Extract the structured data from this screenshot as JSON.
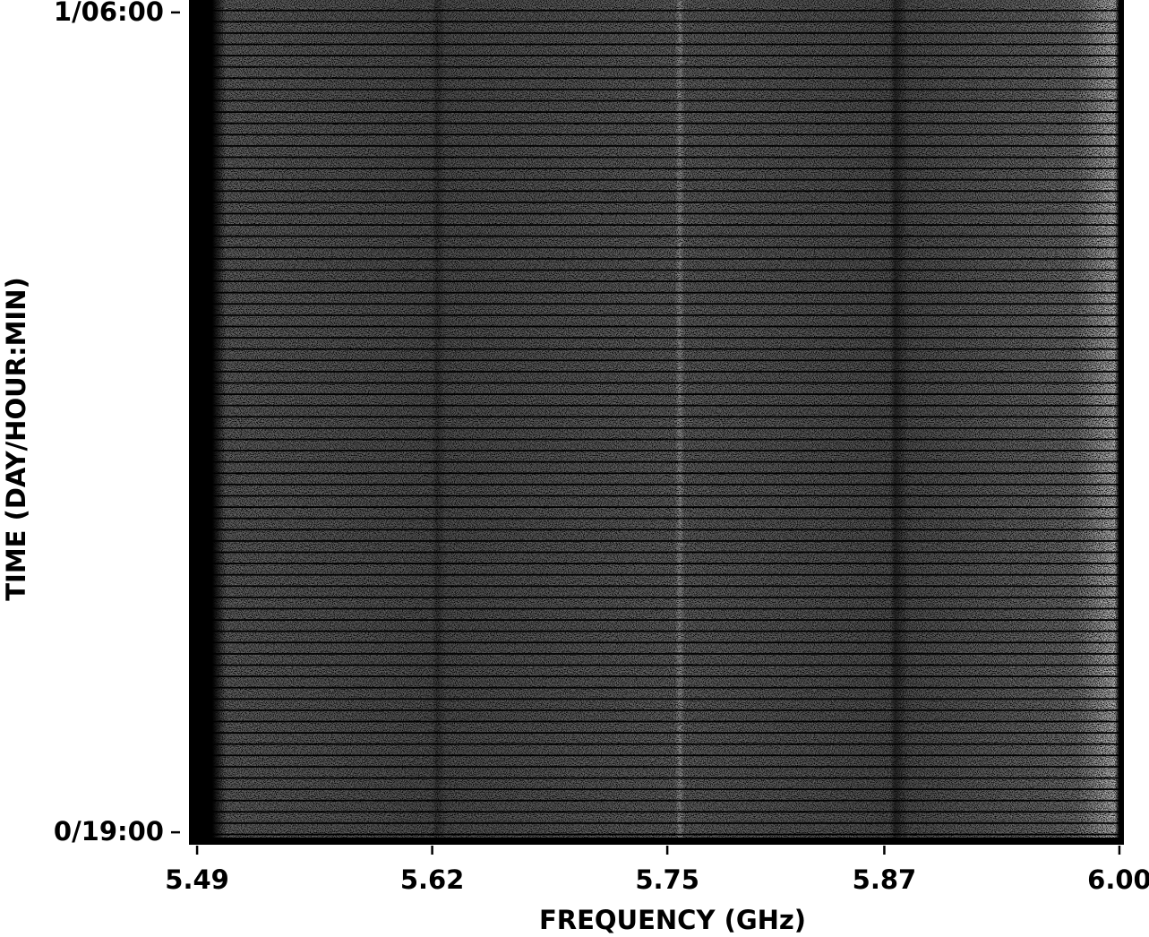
{
  "chart_data": {
    "type": "heatmap",
    "x_label": "FREQUENCY (GHz)",
    "y_label": "TIME (DAY/HOUR:MIN)",
    "xlim": [
      5.4855,
      6.0025
    ],
    "xticks": [
      5.49,
      5.62,
      5.75,
      5.87,
      {
        "value": 6,
        "label": "6.00"
      }
    ],
    "ylim": [
      1130,
      1810
    ],
    "yticks": [
      {
        "value": 1140,
        "label": "0/19:00"
      },
      {
        "value": 1800,
        "label": "1/06:00"
      }
    ]
  }
}
